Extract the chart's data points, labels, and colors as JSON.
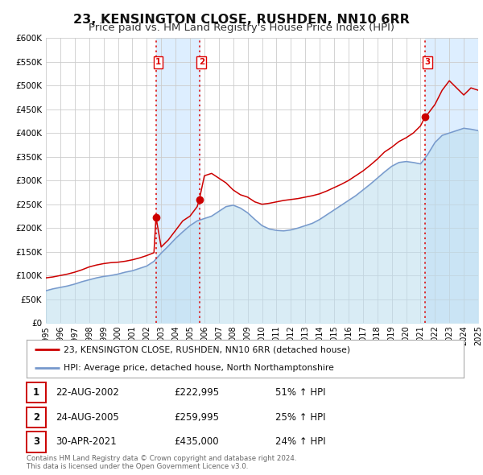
{
  "title": "23, KENSINGTON CLOSE, RUSHDEN, NN10 6RR",
  "subtitle": "Price paid vs. HM Land Registry's House Price Index (HPI)",
  "title_fontsize": 11.5,
  "subtitle_fontsize": 9.5,
  "background_color": "#ffffff",
  "plot_bg_color": "#ffffff",
  "grid_color": "#cccccc",
  "xmin": 1995,
  "xmax": 2025,
  "ymin": 0,
  "ymax": 600000,
  "yticks": [
    0,
    50000,
    100000,
    150000,
    200000,
    250000,
    300000,
    350000,
    400000,
    450000,
    500000,
    550000,
    600000
  ],
  "ytick_labels": [
    "£0",
    "£50K",
    "£100K",
    "£150K",
    "£200K",
    "£250K",
    "£300K",
    "£350K",
    "£400K",
    "£450K",
    "£500K",
    "£550K",
    "£600K"
  ],
  "xticks": [
    1995,
    1996,
    1997,
    1998,
    1999,
    2000,
    2001,
    2002,
    2003,
    2004,
    2005,
    2006,
    2007,
    2008,
    2009,
    2010,
    2011,
    2012,
    2013,
    2014,
    2015,
    2016,
    2017,
    2018,
    2019,
    2020,
    2021,
    2022,
    2023,
    2024,
    2025
  ],
  "red_line_color": "#cc0000",
  "blue_line_color": "#7799cc",
  "blue_fill_color": "#bbddee",
  "sale_marker_color": "#cc0000",
  "sale_marker_size": 7,
  "vline_color": "#dd0000",
  "shade_color": "#ddeeff",
  "legend_line1": "23, KENSINGTON CLOSE, RUSHDEN, NN10 6RR (detached house)",
  "legend_line2": "HPI: Average price, detached house, North Northamptonshire",
  "table_rows": [
    {
      "num": "1",
      "date": "22-AUG-2002",
      "price": "£222,995",
      "change": "51% ↑ HPI"
    },
    {
      "num": "2",
      "date": "24-AUG-2005",
      "price": "£259,995",
      "change": "25% ↑ HPI"
    },
    {
      "num": "3",
      "date": "30-APR-2021",
      "price": "£435,000",
      "change": "24% ↑ HPI"
    }
  ],
  "sale_dates": [
    2002.64,
    2005.65,
    2021.33
  ],
  "sale_prices": [
    222995,
    259995,
    435000
  ],
  "footer": "Contains HM Land Registry data © Crown copyright and database right 2024.\nThis data is licensed under the Open Government Licence v3.0.",
  "red_x": [
    1995.0,
    1995.5,
    1996.0,
    1996.5,
    1997.0,
    1997.5,
    1998.0,
    1998.5,
    1999.0,
    1999.5,
    2000.0,
    2000.5,
    2001.0,
    2001.5,
    2002.0,
    2002.5,
    2002.64,
    2003.0,
    2003.5,
    2004.0,
    2004.5,
    2005.0,
    2005.5,
    2005.65,
    2006.0,
    2006.5,
    2007.0,
    2007.5,
    2008.0,
    2008.5,
    2009.0,
    2009.5,
    2010.0,
    2010.5,
    2011.0,
    2011.5,
    2012.0,
    2012.5,
    2013.0,
    2013.5,
    2014.0,
    2014.5,
    2015.0,
    2015.5,
    2016.0,
    2016.5,
    2017.0,
    2017.5,
    2018.0,
    2018.5,
    2019.0,
    2019.5,
    2020.0,
    2020.5,
    2021.0,
    2021.33,
    2021.5,
    2022.0,
    2022.5,
    2023.0,
    2023.5,
    2024.0,
    2024.5,
    2025.0
  ],
  "red_y": [
    95000,
    97000,
    100000,
    103000,
    107000,
    112000,
    118000,
    122000,
    125000,
    127000,
    128000,
    130000,
    133000,
    137000,
    142000,
    148000,
    222995,
    160000,
    175000,
    195000,
    215000,
    225000,
    245000,
    259995,
    310000,
    315000,
    305000,
    295000,
    280000,
    270000,
    265000,
    255000,
    250000,
    252000,
    255000,
    258000,
    260000,
    262000,
    265000,
    268000,
    272000,
    278000,
    285000,
    292000,
    300000,
    310000,
    320000,
    332000,
    345000,
    360000,
    370000,
    382000,
    390000,
    400000,
    415000,
    435000,
    440000,
    460000,
    490000,
    510000,
    495000,
    480000,
    495000,
    490000
  ],
  "blue_x": [
    1995.0,
    1995.5,
    1996.0,
    1996.5,
    1997.0,
    1997.5,
    1998.0,
    1998.5,
    1999.0,
    1999.5,
    2000.0,
    2000.5,
    2001.0,
    2001.5,
    2002.0,
    2002.5,
    2003.0,
    2003.5,
    2004.0,
    2004.5,
    2005.0,
    2005.5,
    2006.0,
    2006.5,
    2007.0,
    2007.5,
    2008.0,
    2008.5,
    2009.0,
    2009.5,
    2010.0,
    2010.5,
    2011.0,
    2011.5,
    2012.0,
    2012.5,
    2013.0,
    2013.5,
    2014.0,
    2014.5,
    2015.0,
    2015.5,
    2016.0,
    2016.5,
    2017.0,
    2017.5,
    2018.0,
    2018.5,
    2019.0,
    2019.5,
    2020.0,
    2020.5,
    2021.0,
    2021.5,
    2022.0,
    2022.5,
    2023.0,
    2023.5,
    2024.0,
    2024.5,
    2025.0
  ],
  "blue_y": [
    68000,
    72000,
    75000,
    78000,
    82000,
    87000,
    91000,
    95000,
    98000,
    100000,
    103000,
    107000,
    110000,
    115000,
    120000,
    130000,
    147000,
    162000,
    178000,
    192000,
    205000,
    215000,
    220000,
    225000,
    235000,
    245000,
    248000,
    242000,
    232000,
    218000,
    205000,
    198000,
    195000,
    194000,
    196000,
    200000,
    205000,
    210000,
    218000,
    228000,
    238000,
    248000,
    258000,
    268000,
    280000,
    292000,
    305000,
    318000,
    330000,
    338000,
    340000,
    338000,
    335000,
    355000,
    380000,
    395000,
    400000,
    405000,
    410000,
    408000,
    405000
  ]
}
